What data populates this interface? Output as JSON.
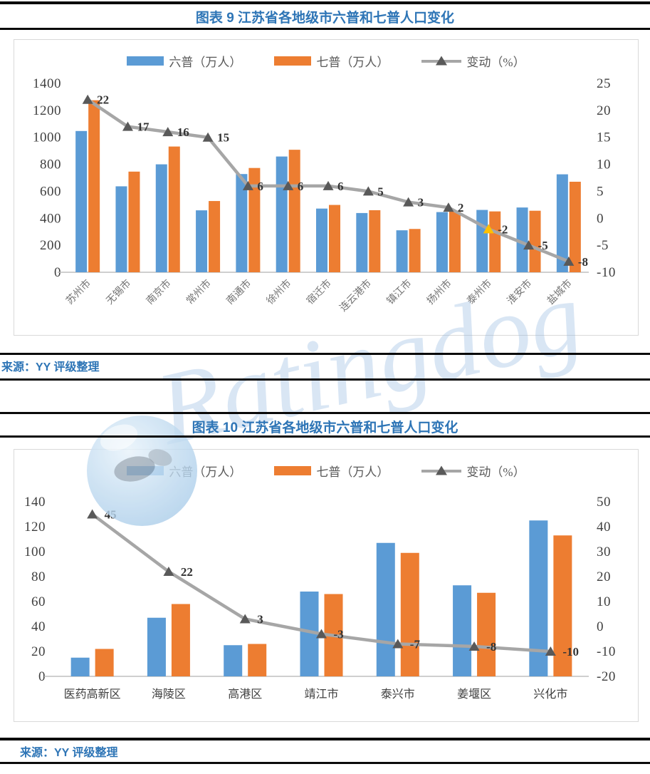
{
  "figures": [
    {
      "title": "图表 9 江苏省各地级市六普和七普人口变化",
      "source": "来源：YY 评级整理"
    },
    {
      "title": "图表 10 江苏省各地级市六普和七普人口变化",
      "source": "来源：YY 评级整理"
    }
  ],
  "watermark": {
    "text": "Ratingdog"
  },
  "colors": {
    "census6_blue": "#5B9BD5",
    "census7_orange": "#ED7D31",
    "change_line_gray": "#A6A6A6",
    "marker_dark_gray": "#595959",
    "marker_highlight_yellow": "#FFC000",
    "title_blue": "#2E75B6",
    "separator_black": "#0a0a0a",
    "chart_border_gray": "#D9D9D9",
    "axis_line_gray": "#BFBFBF"
  },
  "chart_data": [
    {
      "type": "bar",
      "combo": "bar+line",
      "title": "图表 9 江苏省各地级市六普和七普人口变化",
      "grid": false,
      "legend_position": "top",
      "categories": [
        "苏州市",
        "无锡市",
        "南京市",
        "常州市",
        "南通市",
        "徐州市",
        "宿迁市",
        "连云港市",
        "镇江市",
        "扬州市",
        "泰州市",
        "淮安市",
        "盐城市"
      ],
      "series": [
        {
          "name": "六普（万人）",
          "type": "bar",
          "axis": "left",
          "color": "#5B9BD5",
          "values": [
            1047,
            637,
            800,
            459,
            728,
            858,
            472,
            439,
            311,
            446,
            462,
            480,
            726
          ]
        },
        {
          "name": "七普（万人）",
          "type": "bar",
          "axis": "left",
          "color": "#ED7D31",
          "values": [
            1275,
            746,
            932,
            528,
            773,
            908,
            499,
            460,
            321,
            456,
            451,
            456,
            671
          ]
        },
        {
          "name": "变动（%）",
          "type": "line",
          "axis": "right",
          "color": "#A6A6A6",
          "marker_color": "#595959",
          "highlight": {
            "index": 10,
            "category": "泰州市",
            "color": "#FFC000"
          },
          "values": [
            22,
            17,
            16,
            15,
            6,
            6,
            6,
            5,
            3,
            2,
            -2,
            -5,
            -8
          ]
        }
      ],
      "left_axis": {
        "min": 0,
        "max": 1400,
        "step": 200
      },
      "right_axis": {
        "min": -10,
        "max": 25,
        "step": 5
      }
    },
    {
      "type": "bar",
      "combo": "bar+line",
      "title": "图表 10 江苏省各地级市六普和七普人口变化",
      "grid": false,
      "legend_position": "top",
      "categories": [
        "医药高新区",
        "海陵区",
        "高港区",
        "靖江市",
        "泰兴市",
        "姜堰区",
        "兴化市"
      ],
      "series": [
        {
          "name": "六普（万人）",
          "type": "bar",
          "axis": "left",
          "color": "#5B9BD5",
          "values": [
            15,
            47,
            25,
            68,
            107,
            73,
            125
          ]
        },
        {
          "name": "七普（万人）",
          "type": "bar",
          "axis": "left",
          "color": "#ED7D31",
          "values": [
            22,
            58,
            26,
            66,
            99,
            67,
            113
          ]
        },
        {
          "name": "变动（%）",
          "type": "line",
          "axis": "right",
          "color": "#A6A6A6",
          "marker_color": "#595959",
          "highlight": null,
          "values": [
            45,
            22,
            3,
            -3,
            -7,
            -8,
            -10
          ]
        }
      ],
      "left_axis": {
        "min": 0,
        "max": 140,
        "step": 20
      },
      "right_axis": {
        "min": -20,
        "max": 50,
        "step": 10
      }
    }
  ]
}
